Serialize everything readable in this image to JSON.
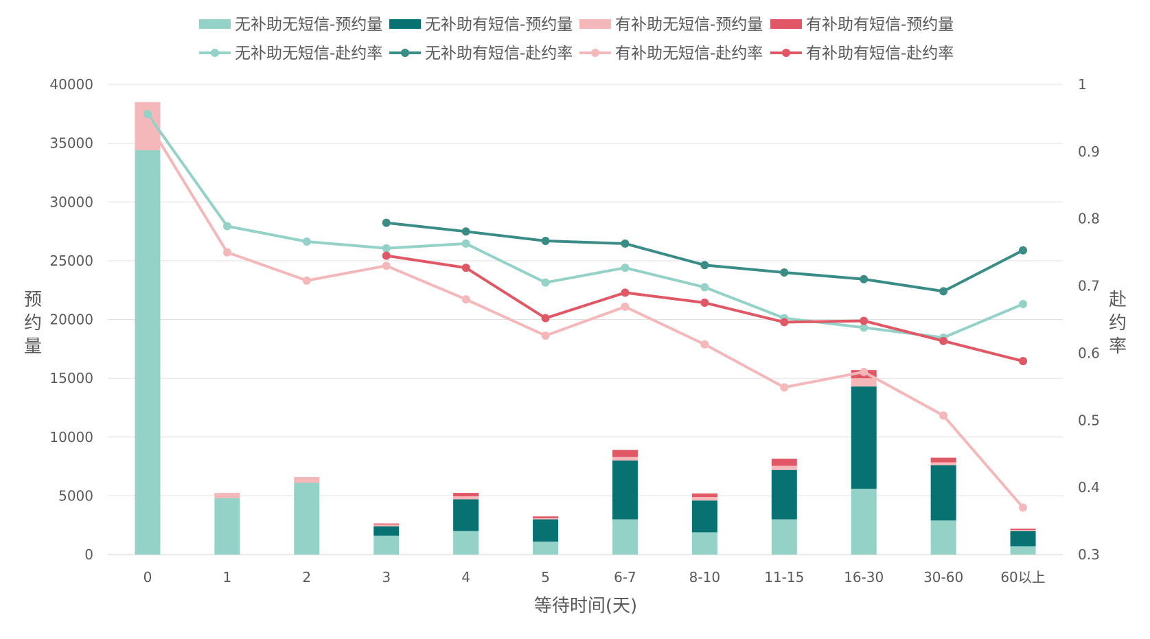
{
  "chart_data": {
    "type": "bar+line",
    "categories": [
      "0",
      "1",
      "2",
      "3",
      "4",
      "5",
      "6-7",
      "8-10",
      "11-15",
      "16-30",
      "30-60",
      "60以上"
    ],
    "xlabel": "等待时间(天)",
    "ylabel_left": "预约量",
    "ylabel_right": "赴约率",
    "ylim_left": [
      0,
      40000
    ],
    "ylim_right": [
      0.3,
      1.0
    ],
    "left_ticks": [
      "0",
      "5000",
      "10000",
      "15000",
      "20000",
      "25000",
      "30000",
      "35000",
      "40000"
    ],
    "right_ticks": [
      "0.3",
      "0.4",
      "0.5",
      "0.6",
      "0.7",
      "0.8",
      "0.9",
      "1"
    ],
    "grid": "horizontal",
    "legend_position": "top",
    "bar_series": [
      {
        "name": "无补助无短信-预约量",
        "color": "#94D1C7",
        "values": [
          34400,
          4800,
          6100,
          1600,
          2000,
          1100,
          3000,
          1900,
          3000,
          5600,
          2900,
          700
        ]
      },
      {
        "name": "无补助有短信-预约量",
        "color": "#087272",
        "values": [
          null,
          null,
          null,
          800,
          2700,
          1900,
          5000,
          2700,
          4200,
          8700,
          4700,
          1300
        ]
      },
      {
        "name": "有补助无短信-预约量",
        "color": "#F4B8BA",
        "values": [
          4100,
          450,
          500,
          150,
          250,
          100,
          300,
          300,
          350,
          700,
          250,
          100
        ]
      },
      {
        "name": "有补助有短信-预约量",
        "color": "#E05765",
        "values": [
          null,
          null,
          null,
          100,
          300,
          150,
          600,
          300,
          600,
          700,
          400,
          100
        ]
      }
    ],
    "line_series": [
      {
        "name": "无补助无短信-赴约率",
        "color": "#94D1C7",
        "values": [
          0.956,
          0.789,
          0.766,
          0.756,
          0.763,
          0.705,
          0.727,
          0.698,
          0.652,
          0.638,
          0.623,
          0.673
        ]
      },
      {
        "name": "无补助有短信-赴约率",
        "color": "#3A8C86",
        "values": [
          null,
          null,
          null,
          0.794,
          0.781,
          0.767,
          0.763,
          0.731,
          0.72,
          0.71,
          0.692,
          0.753
        ]
      },
      {
        "name": "有补助无短信-赴约率",
        "color": "#F4B8BA",
        "values": [
          0.944,
          0.75,
          0.708,
          0.73,
          0.68,
          0.626,
          0.669,
          0.613,
          0.549,
          0.572,
          0.507,
          0.37
        ]
      },
      {
        "name": "有补助有短信-赴约率",
        "color": "#E05765",
        "values": [
          null,
          null,
          null,
          0.745,
          0.727,
          0.652,
          0.69,
          0.675,
          0.646,
          0.648,
          0.618,
          0.588
        ]
      }
    ]
  }
}
